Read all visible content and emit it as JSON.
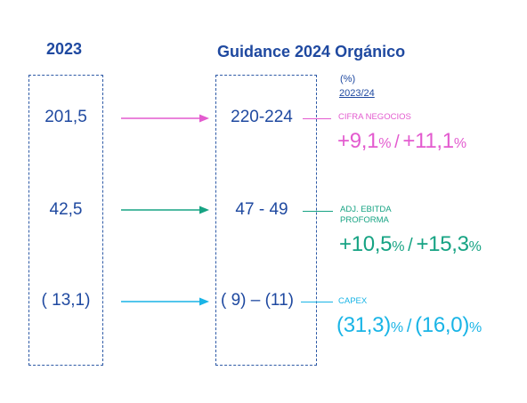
{
  "headers": {
    "year_2023": "2023",
    "guidance": "Guidance 2024 Orgánico"
  },
  "pct_header": {
    "unit": "(%)",
    "period": "2023/24"
  },
  "rows": [
    {
      "value_2023": "201,5",
      "guidance": "220-224",
      "label_line1": "CIFRA NEGOCIOS",
      "label_line2": "",
      "growth_low": "+9,1",
      "growth_high": "+11,1",
      "pct_sign": "%",
      "separator": "/",
      "color": "#e35bcf"
    },
    {
      "value_2023": "42,5",
      "guidance": "47 - 49",
      "label_line1": "ADJ. EBITDA",
      "label_line2": "PROFORMA",
      "growth_low": "+10,5",
      "growth_high": "+15,3",
      "pct_sign": "%",
      "separator": "/",
      "color": "#16a383"
    },
    {
      "value_2023": "( 13,1)",
      "guidance": "( 9) – (11)",
      "label_line1": "CAPEX",
      "label_line2": "",
      "growth_low": "(31,3)",
      "growth_high": "(16,0)",
      "pct_sign": "%",
      "separator": "/",
      "color": "#19b4e6"
    }
  ],
  "colors": {
    "navy": "#1f49a0",
    "box_border": "#2e5aa6"
  }
}
